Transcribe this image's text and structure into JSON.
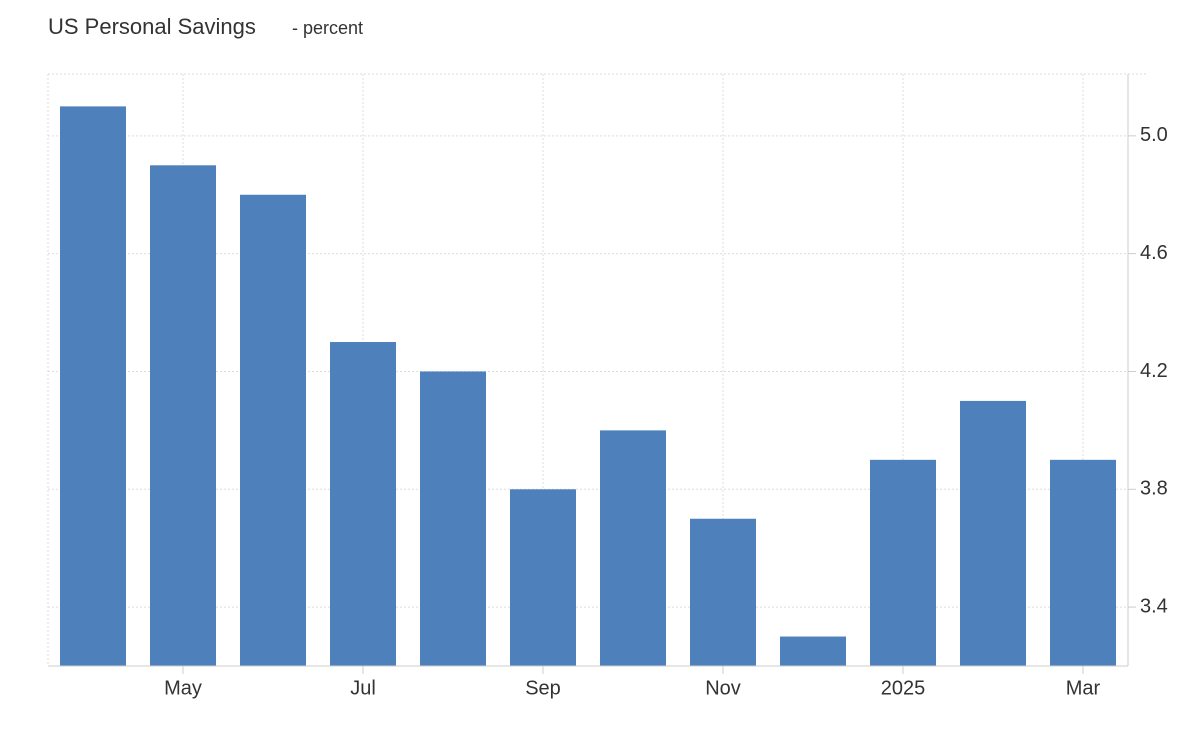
{
  "chart_data": {
    "type": "bar",
    "title": "US Personal Savings",
    "subtitle": "- percent",
    "categories": [
      null,
      "May",
      null,
      "Jul",
      null,
      "Sep",
      null,
      "Nov",
      null,
      "2025",
      null,
      "Mar"
    ],
    "values": [
      5.1,
      4.9,
      4.8,
      4.3,
      4.2,
      3.8,
      4.0,
      3.7,
      3.3,
      3.9,
      4.1,
      3.9
    ],
    "color": "#4e80bb",
    "ylim": [
      3.2,
      5.21
    ],
    "yticks": [
      3.4,
      3.8,
      4.2,
      4.6,
      {
        "value": 5,
        "label": "5.0"
      }
    ],
    "grid": true
  }
}
